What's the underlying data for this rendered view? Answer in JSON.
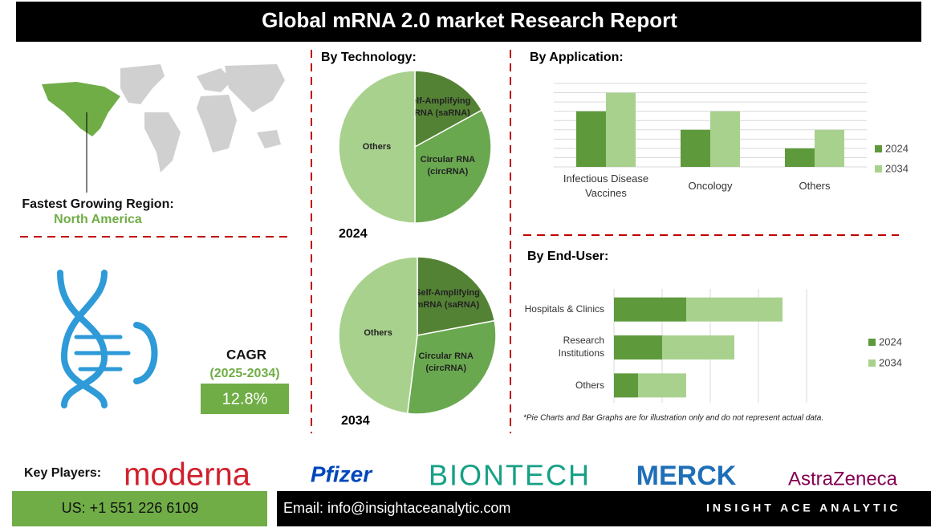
{
  "header": {
    "title": "Global mRNA 2.0 market Research Report"
  },
  "region": {
    "label": "Fastest Growing Region:",
    "value": "North America"
  },
  "cagr": {
    "label": "CAGR",
    "period": "(2025-2034)",
    "value": "12.8%"
  },
  "chart_data": [
    {
      "type": "pie",
      "title": "By Technology:",
      "subtitle": "2024",
      "categories": [
        "Self-Amplifying mRNA (saRNA)",
        "Circular RNA (circRNA)",
        "Others"
      ],
      "values": [
        17,
        33,
        50
      ],
      "colors": [
        "#548235",
        "#6aa84f",
        "#a9d18e"
      ]
    },
    {
      "type": "pie",
      "subtitle": "2034",
      "categories": [
        "Self-Amplifying mRNA (saRNA)",
        "Circular RNA (circRNA)",
        "Others"
      ],
      "values": [
        22,
        30,
        48
      ],
      "colors": [
        "#548235",
        "#6aa84f",
        "#a9d18e"
      ]
    },
    {
      "type": "bar",
      "title": "By Application:",
      "categories": [
        "Infectious Disease Vaccines",
        "Oncology",
        "Others"
      ],
      "series": [
        {
          "name": "2024",
          "color": "#5e9a3c",
          "values": [
            6,
            4,
            2
          ]
        },
        {
          "name": "2034",
          "color": "#a9d18e",
          "values": [
            8,
            6,
            4
          ]
        }
      ],
      "ylim": [
        0,
        9
      ],
      "yticks": [
        0,
        1,
        2,
        3,
        4,
        5,
        6,
        7,
        8,
        9
      ],
      "grid": true,
      "legend": "right"
    },
    {
      "type": "bar",
      "orientation": "horizontal",
      "stacked": true,
      "title": "By End-User:",
      "categories": [
        "Hospitals & Clinics",
        "Research Institutions",
        "Others"
      ],
      "series": [
        {
          "name": "2024",
          "color": "#5e9a3c",
          "values": [
            3,
            2,
            1
          ]
        },
        {
          "name": "2034",
          "color": "#a9d18e",
          "values": [
            4,
            3,
            2
          ]
        }
      ],
      "xlim": [
        0,
        8
      ],
      "xticks": [
        0,
        2,
        4,
        6,
        8
      ],
      "grid": true,
      "legend": "right"
    }
  ],
  "note": "*Pie Charts and Bar Graphs are for illustration only and do not represent actual data.",
  "key_players": {
    "label": "Key Players:",
    "companies": [
      "moderna",
      "Pfizer",
      "BIONTECH",
      "MERCK",
      "AstraZeneca"
    ]
  },
  "footer": {
    "phone": "US: +1 551 226 6109",
    "email": "Email: info@insightaceanalytic.com",
    "brand": "INSIGHT ACE ANALYTIC"
  }
}
